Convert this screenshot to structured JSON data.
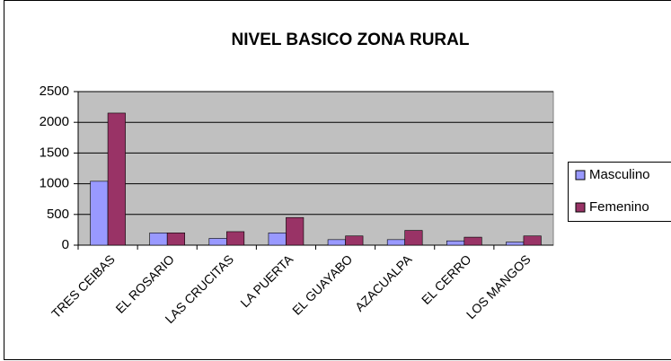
{
  "chart_data": {
    "type": "bar",
    "title": "NIVEL BASICO ZONA RURAL",
    "categories": [
      "TRES CEIBAS",
      "EL ROSARIO",
      "LAS CRUCITAS",
      "LA PUERTA",
      "EL GUAYABO",
      "AZACUALPA",
      "EL CERRO",
      "LOS MANGOS"
    ],
    "series": [
      {
        "name": "Masculino",
        "color": "#9999ff",
        "values": [
          1040,
          200,
          110,
          200,
          90,
          90,
          70,
          50
        ]
      },
      {
        "name": "Femenino",
        "color": "#993366",
        "values": [
          2150,
          200,
          220,
          450,
          150,
          240,
          130,
          150
        ]
      }
    ],
    "ylim": [
      0,
      2500
    ],
    "yticks": [
      0,
      500,
      1000,
      1500,
      2000,
      2500
    ],
    "grid": true,
    "legend": "right"
  }
}
